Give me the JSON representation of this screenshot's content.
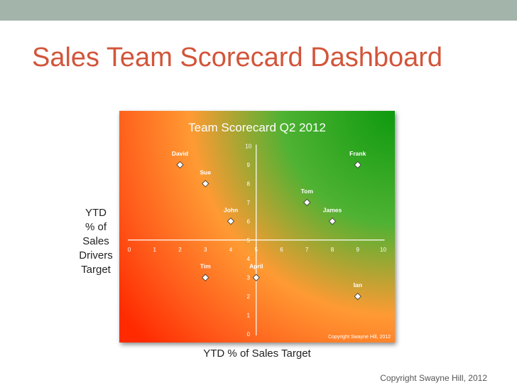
{
  "slide": {
    "title": "Sales Team Scorecard Dashboard",
    "y_label_lines": [
      "YTD",
      "% of",
      "Sales",
      "Drivers",
      "Target"
    ],
    "x_label": "YTD % of Sales Target",
    "copyright": "Copyright Swayne Hill, 2012"
  },
  "chart_data": {
    "type": "scatter",
    "title": "Team Scorecard  Q2 2012",
    "xlabel": "YTD % of Sales Target",
    "ylabel": "YTD % of Sales Drivers Target",
    "xlim": [
      0,
      10
    ],
    "ylim": [
      0,
      10
    ],
    "x_ticks": [
      0,
      1,
      2,
      3,
      4,
      5,
      6,
      7,
      8,
      9,
      10
    ],
    "y_ticks": [
      0,
      1,
      2,
      3,
      4,
      5,
      6,
      7,
      8,
      9,
      10
    ],
    "axes_cross_at": [
      5,
      5
    ],
    "grid": false,
    "points": [
      {
        "label": "David",
        "x": 2,
        "y": 9
      },
      {
        "label": "Sue",
        "x": 3,
        "y": 8
      },
      {
        "label": "Frank",
        "x": 9,
        "y": 9
      },
      {
        "label": "Tom",
        "x": 7,
        "y": 7
      },
      {
        "label": "James",
        "x": 8,
        "y": 6
      },
      {
        "label": "John",
        "x": 4,
        "y": 6
      },
      {
        "label": "Tim",
        "x": 3,
        "y": 3
      },
      {
        "label": "April",
        "x": 5,
        "y": 3
      },
      {
        "label": "Ian",
        "x": 9,
        "y": 2
      }
    ],
    "background": "gradient red (bottom-left) to green (top-right)",
    "colors": {
      "red": "#ff2a00",
      "orange": "#ff9a33",
      "green": "#0e9a0e",
      "marker": "#ffffff"
    },
    "copyright": "Copyright Swayne Hill, 2012"
  }
}
